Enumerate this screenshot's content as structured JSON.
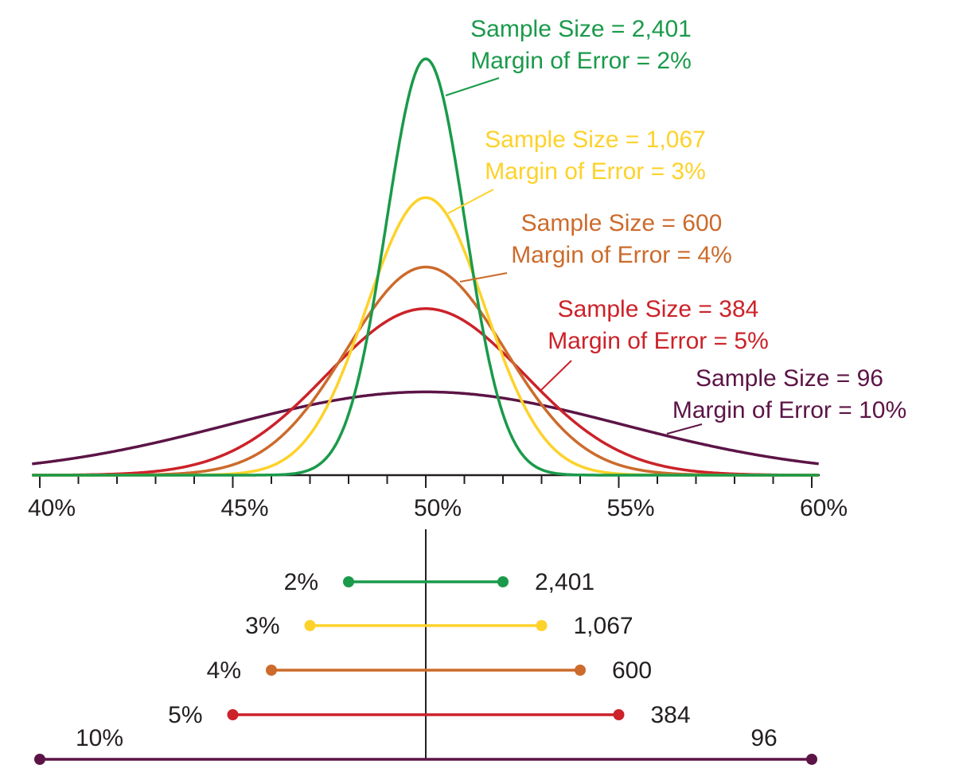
{
  "chart_data": {
    "type": "line",
    "title": "",
    "xlabel": "",
    "ylabel": "",
    "xlim": [
      40,
      60
    ],
    "x_ticks": [
      "40%",
      "45%",
      "50%",
      "55%",
      "60%"
    ],
    "minor_tick_step": 1,
    "center": 50,
    "grid": false,
    "series": [
      {
        "name": "Sample Size = 2,401",
        "moe_label": "Margin of Error = 2%",
        "sample_size": 2401,
        "margin_of_error": 2,
        "color": "#1a9a4a",
        "interval_left_label": "2%",
        "interval_right_label": "2,401"
      },
      {
        "name": "Sample Size = 1,067",
        "moe_label": "Margin of Error = 3%",
        "sample_size": 1067,
        "margin_of_error": 3,
        "color": "#fdd22a",
        "interval_left_label": "3%",
        "interval_right_label": "1,067"
      },
      {
        "name": "Sample Size = 600",
        "moe_label": "Margin of Error = 4%",
        "sample_size": 600,
        "margin_of_error": 4,
        "color": "#cc6b2c",
        "interval_left_label": "4%",
        "interval_right_label": "600"
      },
      {
        "name": "Sample Size = 384",
        "moe_label": "Margin of Error = 5%",
        "sample_size": 384,
        "margin_of_error": 5,
        "color": "#cc2229",
        "interval_left_label": "5%",
        "interval_right_label": "384"
      },
      {
        "name": "Sample Size = 96",
        "moe_label": "Margin of Error = 10%",
        "sample_size": 96,
        "margin_of_error": 10,
        "color": "#5c1446",
        "interval_left_label": "10%",
        "interval_right_label": "96"
      }
    ]
  }
}
